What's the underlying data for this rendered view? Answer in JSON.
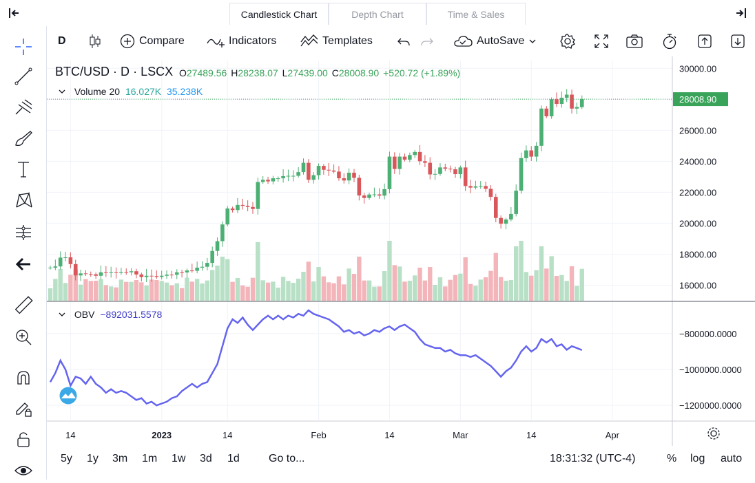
{
  "tabs": [
    {
      "label": "Candlestick Chart",
      "active": true
    },
    {
      "label": "Depth Chart",
      "active": false
    },
    {
      "label": "Time & Sales",
      "active": false
    }
  ],
  "toolbar": {
    "interval": "D",
    "compare": "Compare",
    "indicators": "Indicators",
    "templates": "Templates",
    "autosave": "AutoSave"
  },
  "legend": {
    "symbol": "BTC/USD",
    "sep": "·",
    "interval": "D",
    "exchange": "LSCX",
    "o_label": "O",
    "o": "27489.56",
    "h_label": "H",
    "h": "28238.07",
    "l_label": "L",
    "l": "27439.00",
    "c_label": "C",
    "c": "28008.90",
    "change": "+520.72 (+1.89%)"
  },
  "volume_legend": {
    "label": "Volume 20",
    "v1": "16.027K",
    "v2": "35.238K"
  },
  "obv_legend": {
    "label": "OBV",
    "value": "−892031.5578"
  },
  "bottom": {
    "ranges": [
      "5y",
      "1y",
      "3m",
      "1m",
      "1w",
      "3d",
      "1d"
    ],
    "goto": "Go to...",
    "time": "18:31:32 (UTC-4)",
    "percent": "%",
    "log": "log",
    "auto": "auto"
  },
  "colors": {
    "up": "#26a69a",
    "down": "#ef5350",
    "up_candle": "#4caf73",
    "down_candle": "#d9575b",
    "vol_up": "#b8e0c6",
    "vol_down": "#f3b5b9",
    "obv": "#6464f0",
    "last_price_bg": "#3aa35a"
  },
  "chart_data": [
    {
      "type": "candlestick",
      "title": "BTC/USD · D · LSCX",
      "ylim": [
        15000,
        30500
      ],
      "yticks": [
        "30000.00",
        "28000.00",
        "26000.00",
        "24000.00",
        "22000.00",
        "20000.00",
        "18000.00",
        "16000.00"
      ],
      "xticks": [
        "14",
        "2023",
        "14",
        "Feb",
        "14",
        "Mar",
        "14",
        "Apr"
      ],
      "last_price": "28008.90",
      "x": [
        "2022-12-10",
        "2022-12-11",
        "2022-12-12",
        "2022-12-13",
        "2022-12-14",
        "2022-12-15",
        "2022-12-16",
        "2022-12-17",
        "2022-12-18",
        "2022-12-19",
        "2022-12-20",
        "2022-12-21",
        "2022-12-22",
        "2022-12-23",
        "2022-12-24",
        "2022-12-25",
        "2022-12-26",
        "2022-12-27",
        "2022-12-28",
        "2022-12-29",
        "2022-12-30",
        "2022-12-31",
        "2023-01-01",
        "2023-01-02",
        "2023-01-03",
        "2023-01-04",
        "2023-01-05",
        "2023-01-06",
        "2023-01-07",
        "2023-01-08",
        "2023-01-09",
        "2023-01-10",
        "2023-01-11",
        "2023-01-12",
        "2023-01-13",
        "2023-01-14",
        "2023-01-15",
        "2023-01-16",
        "2023-01-17",
        "2023-01-18",
        "2023-01-19",
        "2023-01-20",
        "2023-01-21",
        "2023-01-22",
        "2023-01-23",
        "2023-01-24",
        "2023-01-25",
        "2023-01-26",
        "2023-01-27",
        "2023-01-28",
        "2023-01-29",
        "2023-01-30",
        "2023-01-31",
        "2023-02-01",
        "2023-02-02",
        "2023-02-03",
        "2023-02-04",
        "2023-02-05",
        "2023-02-06",
        "2023-02-07",
        "2023-02-08",
        "2023-02-09",
        "2023-02-10",
        "2023-02-11",
        "2023-02-12",
        "2023-02-13",
        "2023-02-14",
        "2023-02-15",
        "2023-02-16",
        "2023-02-17",
        "2023-02-18",
        "2023-02-19",
        "2023-02-20",
        "2023-02-21",
        "2023-02-22",
        "2023-02-23",
        "2023-02-24",
        "2023-02-25",
        "2023-02-26",
        "2023-02-27",
        "2023-02-28",
        "2023-03-01",
        "2023-03-02",
        "2023-03-03",
        "2023-03-04",
        "2023-03-05",
        "2023-03-06",
        "2023-03-07",
        "2023-03-08",
        "2023-03-09",
        "2023-03-10",
        "2023-03-11",
        "2023-03-12",
        "2023-03-13",
        "2023-03-14",
        "2023-03-15",
        "2023-03-16",
        "2023-03-17",
        "2023-03-18",
        "2023-03-19",
        "2023-03-20",
        "2023-03-21",
        "2023-03-22",
        "2023-03-23",
        "2023-03-24",
        "2023-03-25"
      ],
      "close": [
        17130,
        17210,
        17780,
        17800,
        17360,
        16630,
        16760,
        16720,
        16700,
        16610,
        16830,
        16810,
        16830,
        16790,
        16840,
        16830,
        16900,
        16690,
        16520,
        16610,
        16590,
        16530,
        16610,
        16680,
        16670,
        16830,
        16820,
        16950,
        16930,
        17130,
        17190,
        17440,
        18210,
        18840,
        19920,
        20950,
        20850,
        21180,
        21120,
        21050,
        20920,
        22660,
        22800,
        22700,
        22900,
        22900,
        23040,
        23060,
        23060,
        23300,
        23900,
        22800,
        23100,
        23700,
        23450,
        23400,
        23330,
        22900,
        22760,
        23260,
        22930,
        21790,
        21630,
        21850,
        21860,
        21780,
        22200,
        24300,
        23500,
        24300,
        24100,
        24400,
        24600,
        24000,
        23900,
        23150,
        23180,
        23600,
        23520,
        23480,
        23170,
        23600,
        22400,
        22300,
        22380,
        22400,
        22220,
        21700,
        20340,
        19970,
        20240,
        20600,
        22100,
        24200,
        24700,
        24300,
        25000,
        27400,
        26900,
        28000,
        27700,
        28100,
        28300,
        27400,
        27500,
        28009
      ],
      "open": [
        17130,
        17130,
        17210,
        17780,
        17800,
        17360,
        16630,
        16760,
        16720,
        16700,
        16610,
        16830,
        16810,
        16830,
        16790,
        16840,
        16830,
        16900,
        16690,
        16520,
        16610,
        16590,
        16530,
        16610,
        16680,
        16670,
        16830,
        16820,
        16950,
        16930,
        17130,
        17190,
        17440,
        18210,
        18840,
        19920,
        20950,
        20850,
        21180,
        21120,
        21050,
        20920,
        22660,
        22800,
        22700,
        22900,
        22900,
        23040,
        23060,
        23060,
        23300,
        23900,
        22800,
        23100,
        23700,
        23450,
        23400,
        23330,
        22900,
        22760,
        23260,
        22930,
        21790,
        21630,
        21850,
        21860,
        21780,
        22200,
        24300,
        23500,
        24300,
        24100,
        24400,
        24600,
        24000,
        23900,
        23150,
        23180,
        23600,
        23520,
        23480,
        23170,
        23600,
        22400,
        22300,
        22380,
        22400,
        22220,
        21700,
        20340,
        19970,
        20240,
        20600,
        22100,
        24200,
        24700,
        24300,
        25000,
        27400,
        26900,
        28000,
        27700,
        28100,
        28300,
        27400,
        27490
      ]
    },
    {
      "type": "bar",
      "title": "Volume 20",
      "series": "volume"
    },
    {
      "type": "line",
      "title": "OBV",
      "ylim": [
        -1280000,
        -620000
      ],
      "yticks": [
        "−800000.0000",
        "−1000000.0000",
        "−1200000.0000"
      ],
      "values": [
        -1070000,
        -1020000,
        -950000,
        -1000000,
        -1090000,
        -1040000,
        -1050000,
        -1080000,
        -1040000,
        -1080000,
        -1100000,
        -1130000,
        -1110000,
        -1130000,
        -1120000,
        -1130000,
        -1150000,
        -1170000,
        -1160000,
        -1190000,
        -1180000,
        -1200000,
        -1190000,
        -1180000,
        -1160000,
        -1150000,
        -1120000,
        -1100000,
        -1080000,
        -1100000,
        -1080000,
        -1070000,
        -1020000,
        -970000,
        -870000,
        -770000,
        -720000,
        -740000,
        -710000,
        -750000,
        -780000,
        -750000,
        -720000,
        -700000,
        -720000,
        -700000,
        -720000,
        -700000,
        -710000,
        -690000,
        -700000,
        -670000,
        -690000,
        -700000,
        -710000,
        -720000,
        -740000,
        -760000,
        -790000,
        -780000,
        -800000,
        -790000,
        -810000,
        -800000,
        -780000,
        -790000,
        -770000,
        -760000,
        -780000,
        -760000,
        -750000,
        -770000,
        -790000,
        -830000,
        -860000,
        -870000,
        -880000,
        -880000,
        -900000,
        -890000,
        -910000,
        -920000,
        -920000,
        -930000,
        -920000,
        -940000,
        -960000,
        -980000,
        -1010000,
        -1040000,
        -1010000,
        -990000,
        -950000,
        -900000,
        -870000,
        -900000,
        -880000,
        -830000,
        -850000,
        -830000,
        -870000,
        -860000,
        -890000,
        -870000,
        -880000,
        -892032
      ]
    }
  ]
}
